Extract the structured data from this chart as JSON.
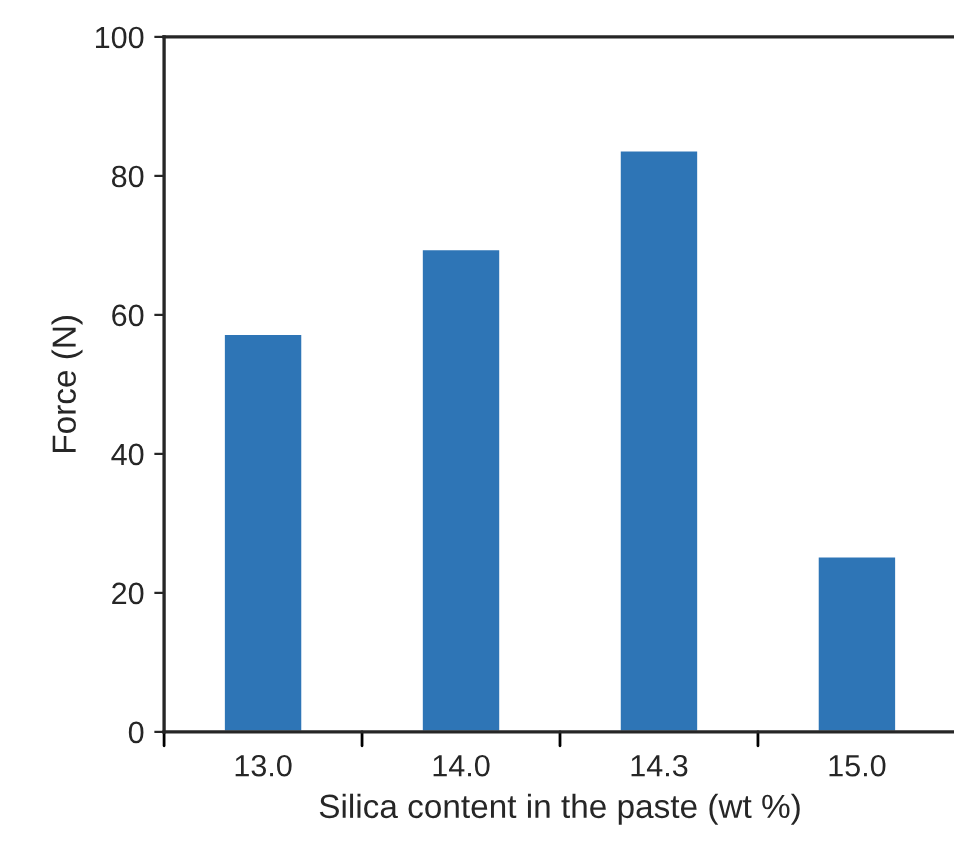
{
  "chart_data": {
    "type": "bar",
    "xlabel": "Silica content in the paste (wt %)",
    "ylabel": "Force (N)",
    "categories": [
      "13.0",
      "14.0",
      "14.3",
      "15.0"
    ],
    "values": [
      57.3,
      69.5,
      83.7,
      25.3
    ],
    "color": "#2e75b6",
    "ylim": [
      0,
      100
    ],
    "yticks": [
      0,
      20,
      40,
      60,
      80,
      100
    ],
    "grid": false
  }
}
